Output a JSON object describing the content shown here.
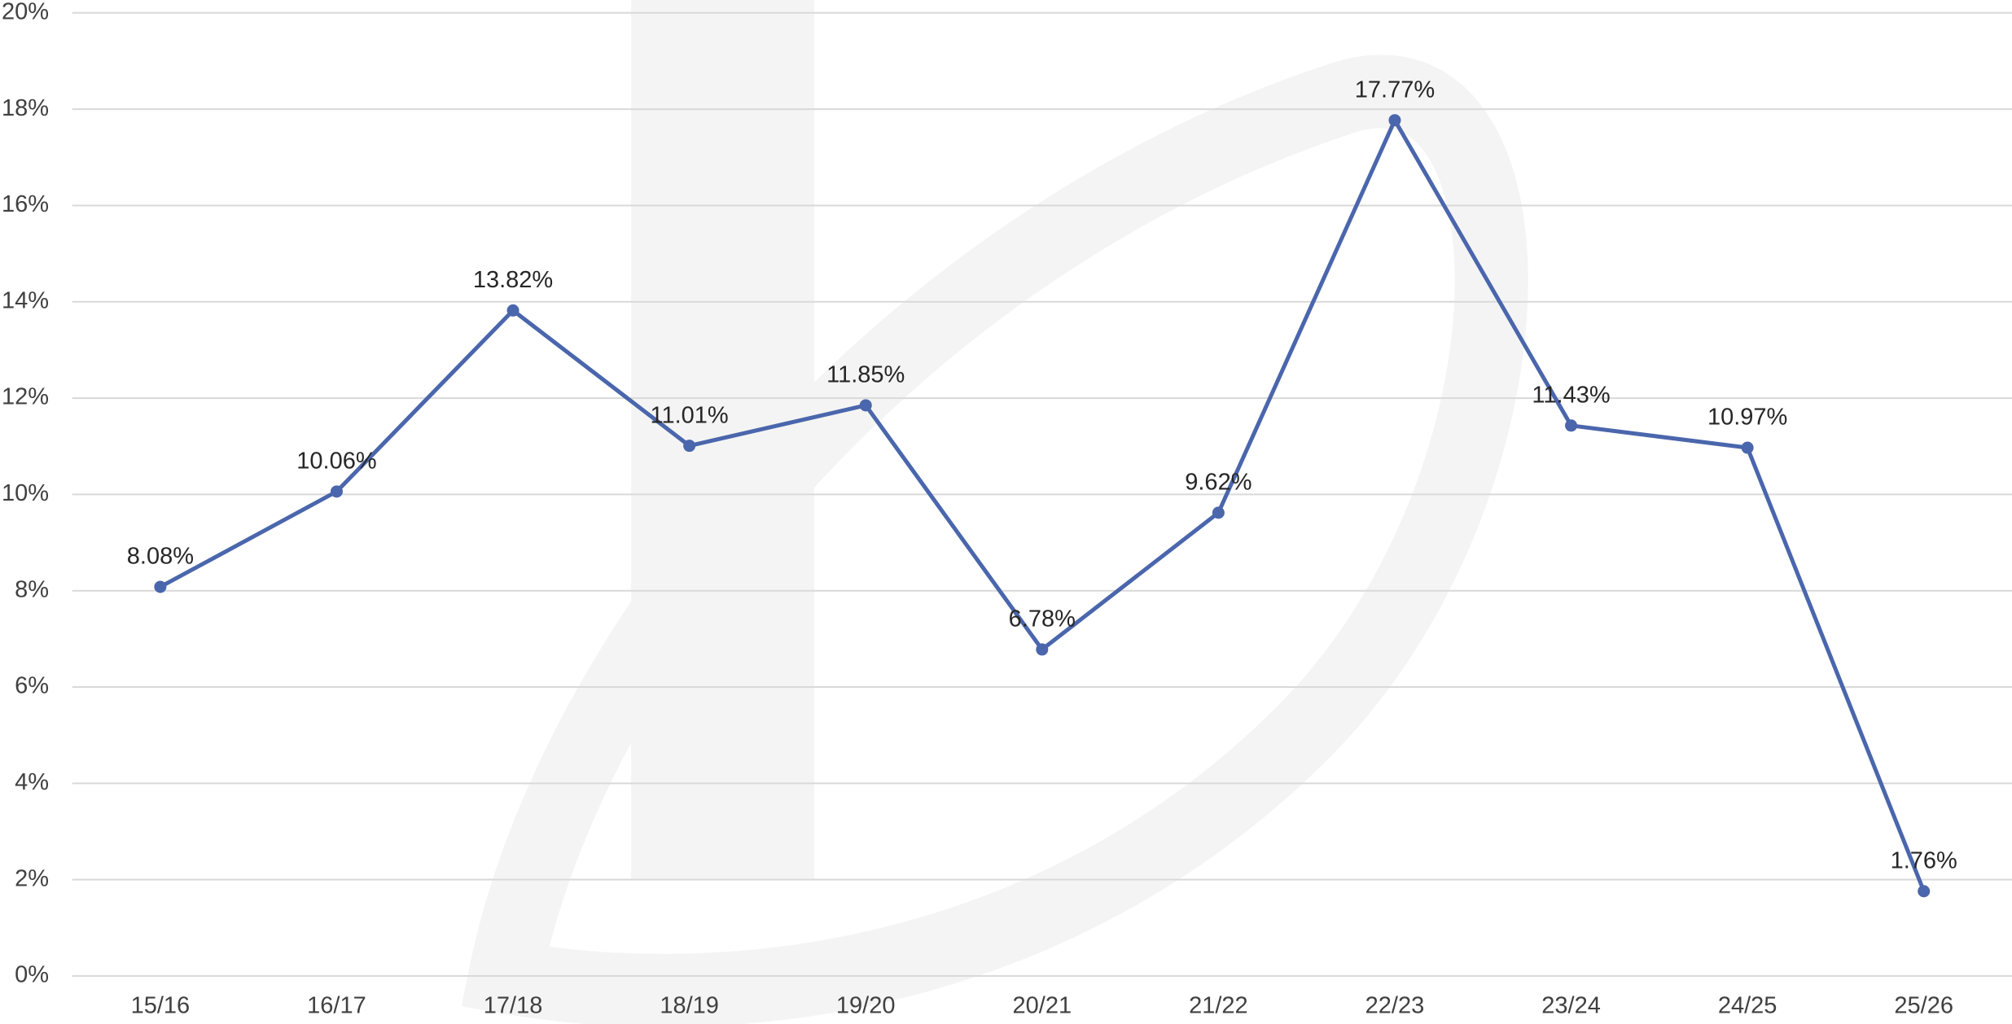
{
  "chart_data": {
    "type": "line",
    "categories": [
      "15/16",
      "16/17",
      "17/18",
      "18/19",
      "19/20",
      "20/21",
      "21/22",
      "22/23",
      "23/24",
      "24/25",
      "25/26"
    ],
    "series": [
      {
        "color": "#4a66ac",
        "values": [
          8.08,
          10.06,
          13.82,
          11.01,
          11.85,
          6.78,
          9.62,
          17.77,
          11.43,
          10.97,
          1.76
        ],
        "value_labels": [
          "8.08%",
          "10.06%",
          "13.82%",
          "11.01%",
          "11.85%",
          "6.78%",
          "9.62%",
          "17.77%",
          "11.43%",
          "10.97%",
          "1.76%"
        ]
      }
    ],
    "ylim": [
      0,
      20
    ],
    "yticks": [
      {
        "value": 0,
        "label": "0%"
      },
      {
        "value": 2,
        "label": "2%"
      },
      {
        "value": 4,
        "label": "4%"
      },
      {
        "value": 6,
        "label": "6%"
      },
      {
        "value": 8,
        "label": "8%"
      },
      {
        "value": 10,
        "label": "10%"
      },
      {
        "value": 12,
        "label": "12%"
      },
      {
        "value": 14,
        "label": "14%"
      },
      {
        "value": 16,
        "label": "16%"
      },
      {
        "value": 18,
        "label": "18%"
      },
      {
        "value": 20,
        "label": "20%"
      }
    ],
    "grid": true
  }
}
